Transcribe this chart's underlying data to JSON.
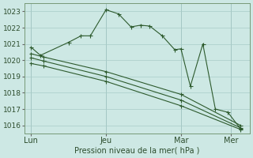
{
  "bg_color": "#cde8e4",
  "grid_color": "#a8ccc8",
  "line_color": "#2d5a2d",
  "xlabel_text": "Pression niveau de la mer( hPa )",
  "xtick_labels": [
    "Lun",
    "Jeu",
    "Mar",
    "Mer"
  ],
  "xtick_positions": [
    0,
    24,
    48,
    64
  ],
  "ylim": [
    1015.5,
    1023.5
  ],
  "yticks": [
    1016,
    1017,
    1018,
    1019,
    1020,
    1021,
    1022,
    1023
  ],
  "vline_positions": [
    0,
    24,
    48,
    64
  ],
  "line1_x": [
    0,
    3,
    12,
    16,
    19,
    24,
    28,
    32,
    35,
    38,
    42,
    46,
    48,
    51,
    55,
    59,
    63,
    67
  ],
  "line1_y": [
    1020.8,
    1020.3,
    1021.1,
    1021.5,
    1021.5,
    1023.1,
    1022.85,
    1022.05,
    1022.15,
    1022.1,
    1021.5,
    1020.65,
    1020.7,
    1018.4,
    1021.0,
    1017.0,
    1016.8,
    1015.8
  ],
  "line2_x": [
    0,
    4,
    24,
    48,
    67
  ],
  "line2_y": [
    1019.8,
    1019.65,
    1018.7,
    1017.2,
    1015.75
  ],
  "line3_x": [
    0,
    4,
    24,
    48,
    67
  ],
  "line3_y": [
    1020.15,
    1019.95,
    1019.0,
    1017.55,
    1015.85
  ],
  "line4_x": [
    0,
    4,
    24,
    48,
    67
  ],
  "line4_y": [
    1020.4,
    1020.2,
    1019.3,
    1017.9,
    1016.0
  ]
}
